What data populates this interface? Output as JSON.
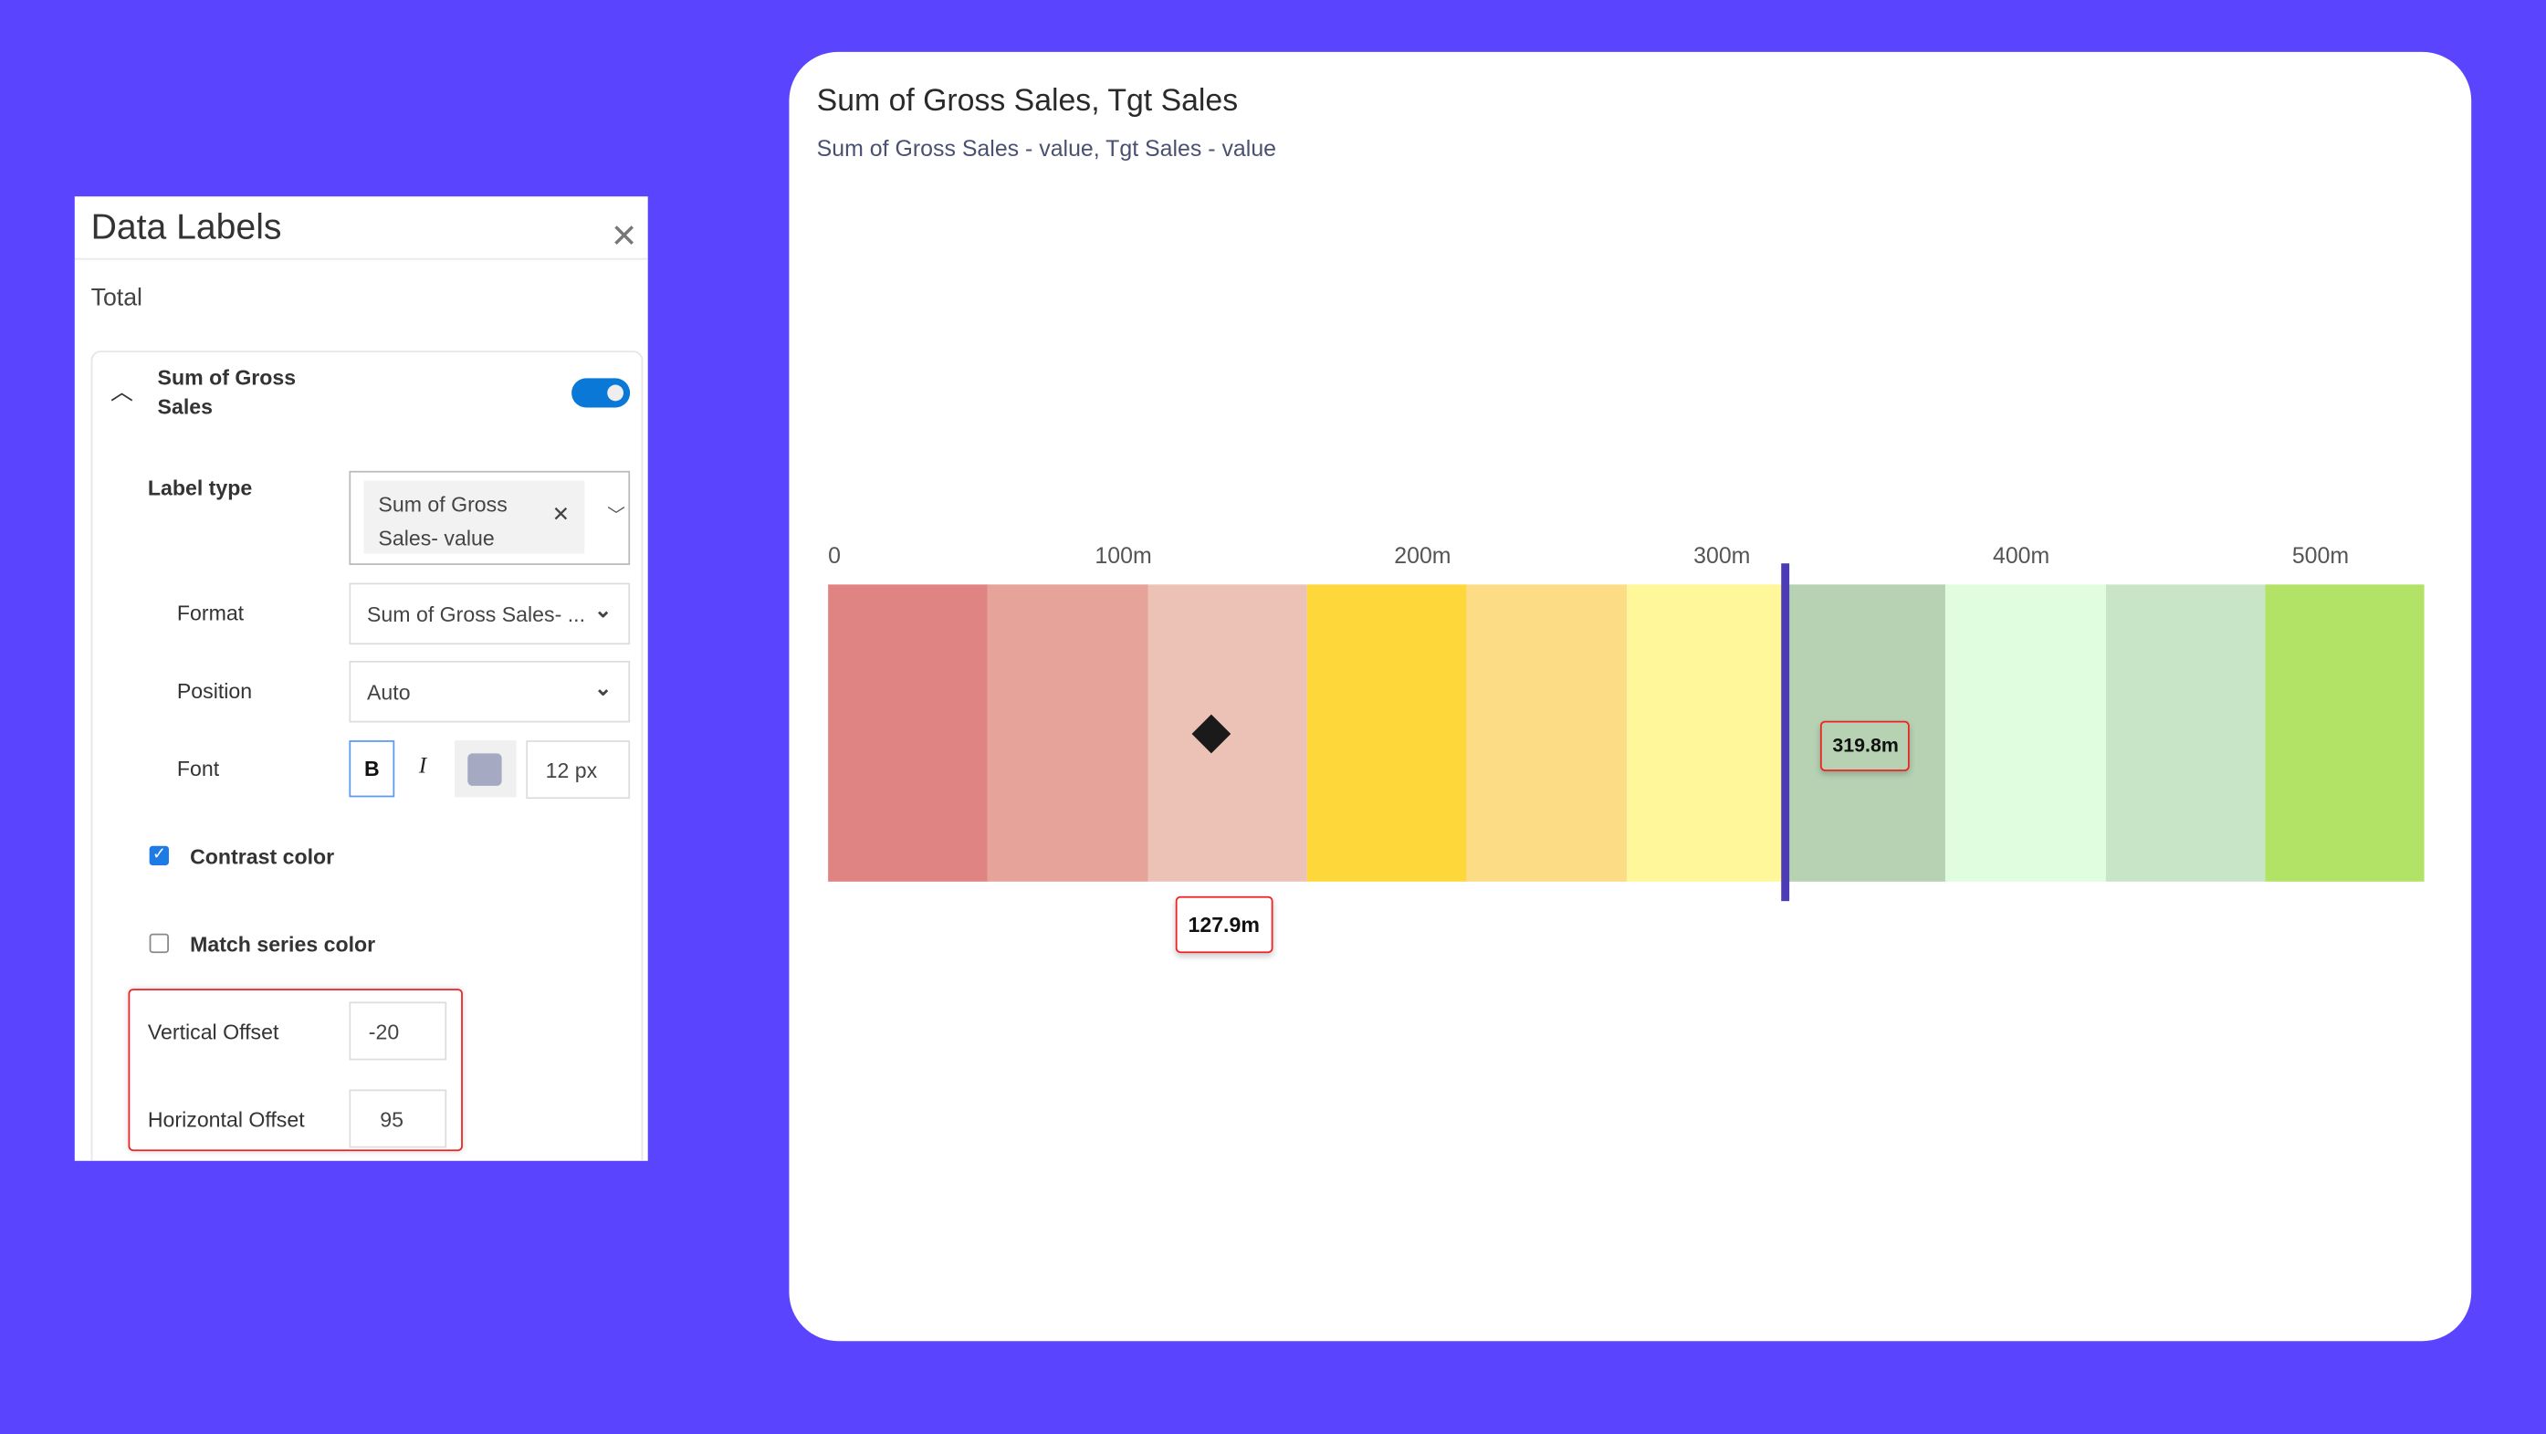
{
  "panel": {
    "title": "Data Labels",
    "section_label": "Total",
    "series_title": "Sum of Gross Sales",
    "series_enabled": true,
    "label_type_label": "Label type",
    "label_type_chip": "Sum of Gross Sales- value",
    "format_label": "Format",
    "format_value": "Sum of Gross Sales- ...",
    "position_label": "Position",
    "position_value": "Auto",
    "font_label": "Font",
    "bold_label": "B",
    "italic_label": "I",
    "font_color": "#a5a9c2",
    "font_size": "12  px",
    "contrast_color_label": "Contrast color",
    "contrast_color_checked": true,
    "match_series_label": "Match series color",
    "match_series_checked": false,
    "vertical_offset_label": "Vertical Offset",
    "vertical_offset_value": "-20",
    "horizontal_offset_label": "Horizontal Offset",
    "horizontal_offset_value": "95"
  },
  "chart_data": {
    "type": "bullet",
    "title": "Sum of Gross Sales, Tgt Sales",
    "subtitle": "Sum of Gross Sales - value, Tgt Sales - value",
    "xlim": [
      0,
      533.3
    ],
    "ticks": [
      {
        "value": 0,
        "label": "0"
      },
      {
        "value": 100,
        "label": "100m"
      },
      {
        "value": 200,
        "label": "200m"
      },
      {
        "value": 300,
        "label": "300m"
      },
      {
        "value": 400,
        "label": "400m"
      },
      {
        "value": 500,
        "label": "500m"
      }
    ],
    "bands": [
      {
        "from": 0,
        "to": 53.3,
        "color": "#df8482"
      },
      {
        "from": 53.3,
        "to": 106.7,
        "color": "#e6a39a"
      },
      {
        "from": 106.7,
        "to": 160,
        "color": "#edc2b6"
      },
      {
        "from": 160,
        "to": 213.3,
        "color": "#fed73a"
      },
      {
        "from": 213.3,
        "to": 266.7,
        "color": "#fcdd85"
      },
      {
        "from": 266.7,
        "to": 320,
        "color": "#fff799"
      },
      {
        "from": 320,
        "to": 373.3,
        "color": "#b6d2b3"
      },
      {
        "from": 373.3,
        "to": 426.7,
        "color": "#e0fde0"
      },
      {
        "from": 426.7,
        "to": 480,
        "color": "#c8e5c8"
      },
      {
        "from": 480,
        "to": 533.3,
        "color": "#b2e367"
      }
    ],
    "value": {
      "name": "Sum of Gross Sales",
      "value": 127.9,
      "label": "127.9m",
      "marker": "diamond",
      "color": "#1a1a1a"
    },
    "target": {
      "name": "Tgt Sales",
      "value": 319.8,
      "label": "319.8m",
      "color": "#4b3bb5"
    }
  }
}
